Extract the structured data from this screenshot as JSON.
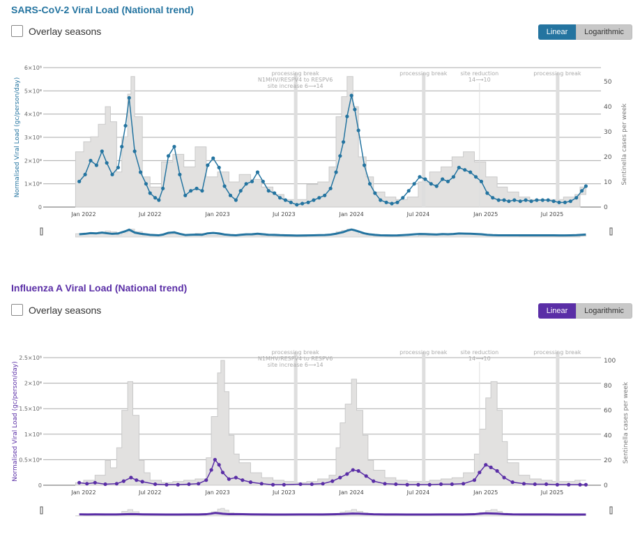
{
  "sections": [
    {
      "title": "SARS-CoV-2 Viral Load (National trend)",
      "overlay_label": "Overlay seasons",
      "overlay_checked": false,
      "scale_options": [
        "Linear",
        "Logarithmic"
      ],
      "scale_selected": "Linear",
      "accent": "#2474a0"
    },
    {
      "title": "Influenza A Viral Load (National trend)",
      "overlay_label": "Overlay seasons",
      "overlay_checked": false,
      "scale_options": [
        "Linear",
        "Logarithmic"
      ],
      "scale_selected": "Linear",
      "accent": "#5a2ea6"
    }
  ],
  "chart_data": [
    {
      "type": "line",
      "title": "SARS-CoV-2 Viral Load (National trend)",
      "ylabel": "Normalised Viral Load (gc/person/day)",
      "y2label": "Sentinella cases per week",
      "ylim": [
        0,
        600000000
      ],
      "y2lim": [
        0,
        55
      ],
      "yticks": [
        0,
        100000000,
        200000000,
        300000000,
        400000000,
        500000000,
        600000000
      ],
      "ytick_labels": [
        "0",
        "1×10⁸",
        "2×10⁸",
        "3×10⁸",
        "4×10⁸",
        "5×10⁸",
        "6×10⁸"
      ],
      "y2ticks": [
        0,
        10,
        20,
        30,
        40,
        50
      ],
      "y2tick_labels": [
        "0",
        "10",
        "20",
        "30",
        "40",
        "50"
      ],
      "xlim": [
        "2021-12-01",
        "2025-10-15"
      ],
      "xticks": [
        "2022-01-01",
        "2022-07-01",
        "2023-01-01",
        "2023-07-01",
        "2024-01-01",
        "2024-07-01",
        "2025-01-01",
        "2025-07-01"
      ],
      "xtick_labels": [
        "Jan 2022",
        "Jul 2022",
        "Jan 2023",
        "Jul 2023",
        "Jan 2024",
        "Jul 2024",
        "Jan 2025",
        "Jul 2025"
      ],
      "grid": true,
      "color": "#2474a0",
      "bar_color": "#e2e1e0",
      "annotations": [
        {
          "date": "2023-08-01",
          "lines": [
            "processing break",
            "N1MHV/RESPV4 to RESPV6",
            "site increase 6⟶14"
          ]
        },
        {
          "date": "2024-07-15",
          "lines": [
            "processing break"
          ]
        },
        {
          "date": "2024-12-15",
          "lines": [
            "site reduction",
            "14⟶10"
          ]
        },
        {
          "date": "2025-07-15",
          "lines": [
            "processing break"
          ]
        }
      ],
      "series": [
        {
          "name": "Viral load",
          "kind": "points+line",
          "x": [
            "2021-12-20",
            "2022-01-05",
            "2022-01-20",
            "2022-02-05",
            "2022-02-20",
            "2022-03-05",
            "2022-03-20",
            "2022-04-05",
            "2022-04-15",
            "2022-04-25",
            "2022-05-05",
            "2022-05-20",
            "2022-06-05",
            "2022-06-20",
            "2022-07-01",
            "2022-07-15",
            "2022-07-25",
            "2022-08-05",
            "2022-08-20",
            "2022-09-05",
            "2022-09-20",
            "2022-10-05",
            "2022-10-20",
            "2022-11-05",
            "2022-11-20",
            "2022-12-05",
            "2022-12-20",
            "2023-01-05",
            "2023-01-20",
            "2023-02-05",
            "2023-02-20",
            "2023-03-05",
            "2023-03-20",
            "2023-04-05",
            "2023-04-20",
            "2023-05-05",
            "2023-05-20",
            "2023-06-05",
            "2023-06-20",
            "2023-07-05",
            "2023-07-20",
            "2023-08-05",
            "2023-08-20",
            "2023-09-05",
            "2023-09-20",
            "2023-10-05",
            "2023-10-20",
            "2023-11-05",
            "2023-11-20",
            "2023-12-01",
            "2023-12-10",
            "2023-12-20",
            "2024-01-01",
            "2024-01-10",
            "2024-01-20",
            "2024-02-05",
            "2024-02-20",
            "2024-03-05",
            "2024-03-20",
            "2024-04-05",
            "2024-04-20",
            "2024-05-05",
            "2024-05-20",
            "2024-06-05",
            "2024-06-20",
            "2024-07-05",
            "2024-07-20",
            "2024-08-05",
            "2024-08-20",
            "2024-09-05",
            "2024-09-20",
            "2024-10-05",
            "2024-10-20",
            "2024-11-05",
            "2024-11-20",
            "2024-12-05",
            "2024-12-20",
            "2025-01-05",
            "2025-01-20",
            "2025-02-05",
            "2025-02-20",
            "2025-03-05",
            "2025-03-20",
            "2025-04-05",
            "2025-04-20",
            "2025-05-05",
            "2025-05-20",
            "2025-06-05",
            "2025-06-20",
            "2025-07-05",
            "2025-07-20",
            "2025-08-05",
            "2025-08-20",
            "2025-09-05",
            "2025-09-20",
            "2025-10-01"
          ],
          "y": [
            110000000,
            140000000,
            200000000,
            180000000,
            240000000,
            190000000,
            140000000,
            170000000,
            260000000,
            350000000,
            470000000,
            240000000,
            150000000,
            100000000,
            60000000,
            40000000,
            30000000,
            80000000,
            220000000,
            260000000,
            140000000,
            50000000,
            70000000,
            80000000,
            70000000,
            180000000,
            210000000,
            170000000,
            90000000,
            50000000,
            30000000,
            70000000,
            100000000,
            110000000,
            150000000,
            110000000,
            70000000,
            60000000,
            40000000,
            30000000,
            20000000,
            10000000,
            15000000,
            20000000,
            30000000,
            40000000,
            50000000,
            80000000,
            150000000,
            220000000,
            280000000,
            390000000,
            480000000,
            420000000,
            330000000,
            180000000,
            100000000,
            60000000,
            30000000,
            20000000,
            15000000,
            20000000,
            40000000,
            70000000,
            100000000,
            130000000,
            120000000,
            100000000,
            90000000,
            120000000,
            110000000,
            130000000,
            170000000,
            160000000,
            150000000,
            130000000,
            110000000,
            60000000,
            40000000,
            30000000,
            30000000,
            25000000,
            30000000,
            25000000,
            30000000,
            25000000,
            30000000,
            30000000,
            30000000,
            25000000,
            20000000,
            20000000,
            25000000,
            40000000,
            70000000,
            90000000
          ]
        },
        {
          "name": "Sentinella cases per week",
          "kind": "step-area",
          "x": [
            "2021-12-10",
            "2022-01-01",
            "2022-01-20",
            "2022-02-10",
            "2022-03-01",
            "2022-03-15",
            "2022-04-01",
            "2022-04-15",
            "2022-05-01",
            "2022-05-10",
            "2022-05-20",
            "2022-06-10",
            "2022-07-01",
            "2022-08-01",
            "2022-09-01",
            "2022-10-01",
            "2022-11-01",
            "2022-12-01",
            "2023-01-01",
            "2023-02-01",
            "2023-03-01",
            "2023-04-01",
            "2023-05-01",
            "2023-06-01",
            "2023-07-01",
            "2023-08-01",
            "2023-09-01",
            "2023-10-01",
            "2023-11-01",
            "2023-11-20",
            "2023-12-05",
            "2023-12-20",
            "2024-01-05",
            "2024-01-20",
            "2024-02-10",
            "2024-03-01",
            "2024-04-01",
            "2024-05-01",
            "2024-06-01",
            "2024-07-01",
            "2024-08-01",
            "2024-09-01",
            "2024-10-01",
            "2024-11-01",
            "2024-12-01",
            "2025-01-01",
            "2025-02-01",
            "2025-03-01",
            "2025-04-01",
            "2025-05-01",
            "2025-06-01",
            "2025-07-01",
            "2025-08-01",
            "2025-09-01",
            "2025-10-01"
          ],
          "y": [
            22,
            26,
            28,
            33,
            40,
            34,
            14,
            28,
            45,
            52,
            36,
            12,
            8,
            18,
            21,
            16,
            24,
            12,
            14,
            10,
            13,
            11,
            8,
            5,
            3,
            3,
            9,
            10,
            16,
            36,
            44,
            52,
            40,
            20,
            12,
            6,
            4,
            3,
            4,
            10,
            14,
            16,
            20,
            22,
            18,
            12,
            8,
            6,
            4,
            3,
            3,
            3,
            4,
            5,
            8
          ]
        }
      ]
    },
    {
      "type": "line",
      "title": "Influenza A Viral Load (National trend)",
      "ylabel": "Normalised Viral Load (gc/person/day)",
      "y2label": "Sentinella cases per week",
      "ylim": [
        0,
        250000000
      ],
      "y2lim": [
        0,
        100
      ],
      "yticks": [
        0,
        50000000,
        100000000,
        150000000,
        200000000,
        250000000
      ],
      "ytick_labels": [
        "0",
        "0.5×10⁸",
        "1×10⁸",
        "1.5×10⁸",
        "2×10⁸",
        "2.5×10⁸"
      ],
      "y2ticks": [
        0,
        20,
        40,
        60,
        80,
        100
      ],
      "y2tick_labels": [
        "0",
        "20",
        "40",
        "60",
        "80",
        "100"
      ],
      "xlim": [
        "2021-12-01",
        "2025-10-15"
      ],
      "xticks": [
        "2022-01-01",
        "2022-07-01",
        "2023-01-01",
        "2023-07-01",
        "2024-01-01",
        "2024-07-01",
        "2025-01-01",
        "2025-07-01"
      ],
      "xtick_labels": [
        "Jan 2022",
        "Jul 2022",
        "Jan 2023",
        "Jul 2023",
        "Jan 2024",
        "Jul 2024",
        "Jan 2025",
        "Jul 2025"
      ],
      "grid": true,
      "color": "#5a2ea6",
      "bar_color": "#e2e1e0",
      "annotations": [
        {
          "date": "2023-08-01",
          "lines": [
            "processing break",
            "N1MHV/RESPV4 to RESPV6",
            "site increase 6⟶14"
          ]
        },
        {
          "date": "2024-07-15",
          "lines": [
            "processing break"
          ]
        },
        {
          "date": "2024-12-15",
          "lines": [
            "site reduction",
            "14⟶10"
          ]
        },
        {
          "date": "2025-07-15",
          "lines": [
            "processing break"
          ]
        }
      ],
      "series": [
        {
          "name": "Viral load",
          "kind": "points+line",
          "x": [
            "2021-12-20",
            "2022-01-10",
            "2022-02-01",
            "2022-03-01",
            "2022-04-01",
            "2022-04-20",
            "2022-05-10",
            "2022-05-25",
            "2022-06-10",
            "2022-07-15",
            "2022-08-15",
            "2022-09-15",
            "2022-10-15",
            "2022-11-10",
            "2022-12-01",
            "2022-12-15",
            "2022-12-25",
            "2023-01-05",
            "2023-01-15",
            "2023-02-01",
            "2023-02-20",
            "2023-03-10",
            "2023-04-01",
            "2023-05-01",
            "2023-06-01",
            "2023-07-01",
            "2023-08-15",
            "2023-09-15",
            "2023-10-15",
            "2023-11-10",
            "2023-12-01",
            "2023-12-20",
            "2024-01-05",
            "2024-01-20",
            "2024-02-10",
            "2024-03-01",
            "2024-04-01",
            "2024-05-01",
            "2024-06-01",
            "2024-07-01",
            "2024-08-01",
            "2024-09-01",
            "2024-10-01",
            "2024-11-01",
            "2024-12-01",
            "2024-12-15",
            "2025-01-01",
            "2025-01-15",
            "2025-02-01",
            "2025-02-20",
            "2025-03-15",
            "2025-04-15",
            "2025-05-15",
            "2025-06-15",
            "2025-07-15",
            "2025-08-15",
            "2025-09-15",
            "2025-10-01"
          ],
          "y": [
            5000000,
            3000000,
            5000000,
            2000000,
            3000000,
            8000000,
            15000000,
            10000000,
            7000000,
            2000000,
            1000000,
            1000000,
            2000000,
            3000000,
            10000000,
            30000000,
            50000000,
            40000000,
            25000000,
            12000000,
            15000000,
            10000000,
            6000000,
            3000000,
            1000000,
            1000000,
            2000000,
            2000000,
            3000000,
            8000000,
            15000000,
            22000000,
            30000000,
            28000000,
            18000000,
            8000000,
            3000000,
            2000000,
            1000000,
            1000000,
            1000000,
            2000000,
            2000000,
            3000000,
            10000000,
            25000000,
            40000000,
            35000000,
            28000000,
            15000000,
            6000000,
            3000000,
            2000000,
            2000000,
            1000000,
            1000000,
            1000000,
            1000000
          ]
        },
        {
          "name": "Sentinella cases per week",
          "kind": "step-area",
          "x": [
            "2021-12-10",
            "2022-01-01",
            "2022-02-01",
            "2022-03-01",
            "2022-03-15",
            "2022-04-01",
            "2022-04-15",
            "2022-05-01",
            "2022-05-15",
            "2022-06-01",
            "2022-06-15",
            "2022-07-01",
            "2022-08-01",
            "2022-09-01",
            "2022-10-01",
            "2022-11-01",
            "2022-12-01",
            "2022-12-15",
            "2023-01-01",
            "2023-01-10",
            "2023-01-20",
            "2023-02-01",
            "2023-02-15",
            "2023-03-01",
            "2023-04-01",
            "2023-05-01",
            "2023-06-01",
            "2023-07-01",
            "2023-08-01",
            "2023-09-01",
            "2023-10-01",
            "2023-11-01",
            "2023-11-20",
            "2023-12-01",
            "2023-12-15",
            "2024-01-01",
            "2024-01-15",
            "2024-02-01",
            "2024-02-15",
            "2024-03-01",
            "2024-04-01",
            "2024-05-01",
            "2024-06-01",
            "2024-07-01",
            "2024-08-01",
            "2024-09-01",
            "2024-10-01",
            "2024-11-01",
            "2024-12-01",
            "2024-12-15",
            "2025-01-01",
            "2025-01-15",
            "2025-02-01",
            "2025-02-15",
            "2025-03-01",
            "2025-04-01",
            "2025-05-01",
            "2025-06-01",
            "2025-07-01",
            "2025-08-01",
            "2025-09-01",
            "2025-10-01"
          ],
          "y": [
            2,
            4,
            8,
            20,
            14,
            30,
            60,
            83,
            56,
            20,
            10,
            4,
            2,
            3,
            4,
            5,
            22,
            55,
            90,
            100,
            75,
            40,
            25,
            18,
            10,
            6,
            4,
            3,
            2,
            3,
            5,
            8,
            30,
            50,
            65,
            85,
            60,
            40,
            20,
            12,
            6,
            4,
            3,
            3,
            4,
            5,
            6,
            10,
            25,
            45,
            70,
            83,
            60,
            35,
            18,
            8,
            5,
            4,
            3,
            3,
            4,
            4
          ]
        }
      ]
    }
  ]
}
